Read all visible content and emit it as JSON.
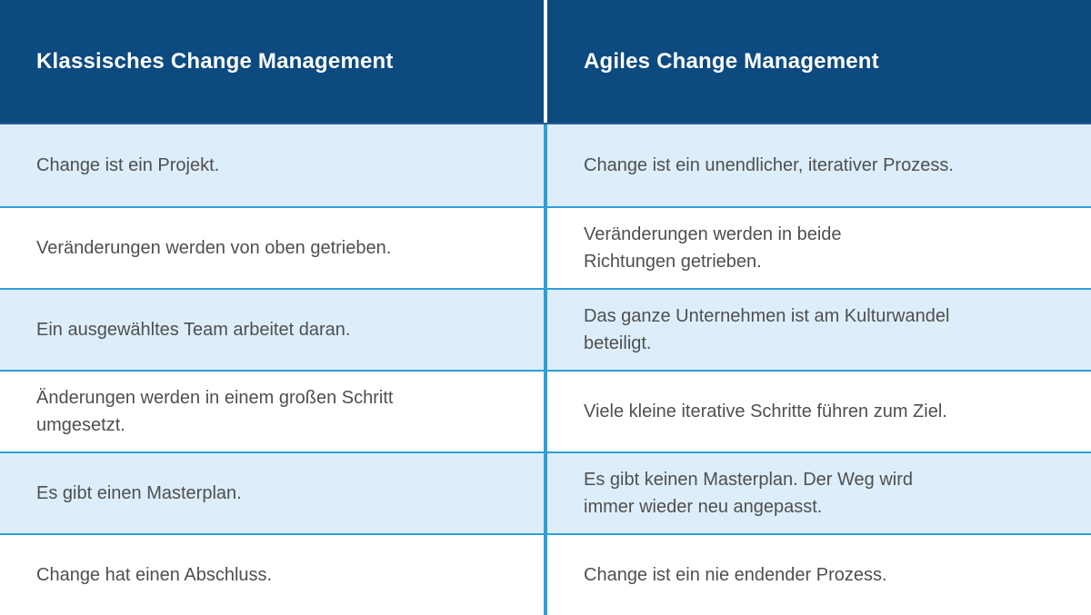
{
  "chart_data": {
    "type": "table",
    "columns": [
      "Klassisches Change Management",
      "Agiles Change Management"
    ],
    "rows": [
      [
        "Change ist ein Projekt.",
        "Change ist ein unendlicher, iterativer Prozess."
      ],
      [
        "Veränderungen werden von oben getrieben.",
        "Veränderungen werden in beide\nRichtungen getrieben."
      ],
      [
        "Ein ausgewähltes Team arbeitet daran.",
        "Das ganze Unternehmen ist am Kulturwandel\nbeteiligt."
      ],
      [
        "Änderungen werden in einem großen Schritt\numgesetzt.",
        "Viele kleine iterative Schritte führen zum Ziel."
      ],
      [
        "Es gibt einen Masterplan.",
        "Es gibt keinen Masterplan. Der Weg wird\nimmer wieder neu angepasst."
      ],
      [
        "Change hat einen Abschluss.",
        "Change ist ein nie endender Prozess."
      ]
    ],
    "layout": {
      "header_row": true,
      "alternating_rows": true,
      "column_count": 2,
      "row_count": 6
    },
    "colors": {
      "header_bg": "#0c4a80",
      "header_text": "#ffffff",
      "row_alt_bg": "#ddeefa",
      "row_bg": "#ffffff",
      "separator_blue": "#2da0d8",
      "header_divider": "#ffffff",
      "body_text": "#4f4f4f"
    }
  }
}
